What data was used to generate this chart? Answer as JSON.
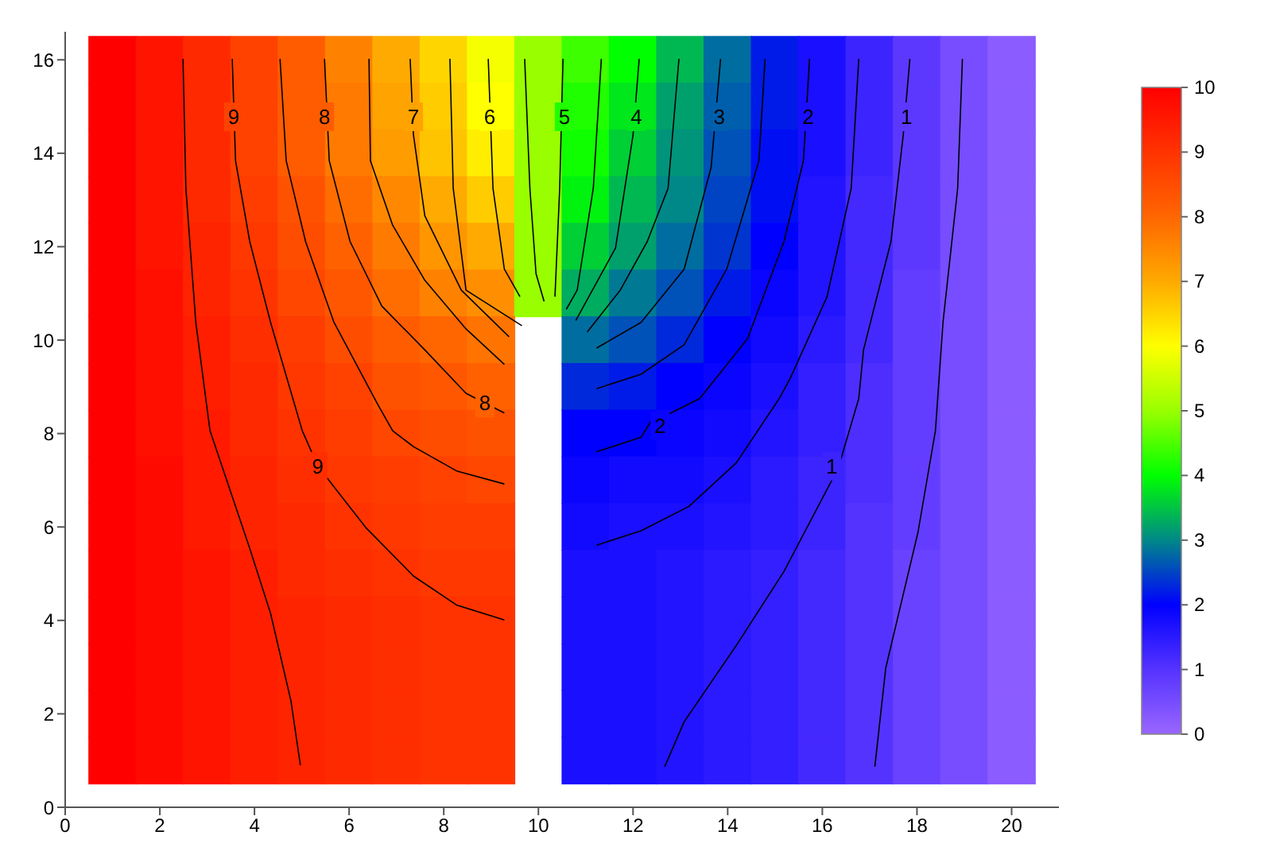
{
  "chart_data": {
    "type": "heatmap",
    "x": [
      1,
      2,
      3,
      4,
      5,
      6,
      7,
      8,
      9,
      10,
      11,
      12,
      13,
      14,
      15,
      16,
      17,
      18,
      19,
      20
    ],
    "y": [
      16,
      15,
      14,
      13,
      12,
      11,
      10,
      9,
      8,
      7,
      6,
      5,
      4,
      3,
      2,
      1
    ],
    "cells": [
      [
        10,
        9.6,
        9.2,
        8.7,
        8.2,
        7.6,
        7.0,
        6.5,
        5.9,
        5.0,
        4.4,
        4.0,
        3.4,
        2.8,
        2.2,
        1.7,
        1.3,
        0.9,
        0.5,
        0.2
      ],
      [
        10,
        9.6,
        9.2,
        8.7,
        8.2,
        7.7,
        7.1,
        6.6,
        6.0,
        5.0,
        4.2,
        3.8,
        3.2,
        2.7,
        2.2,
        1.7,
        1.3,
        0.9,
        0.5,
        0.2
      ],
      [
        10,
        9.6,
        9.2,
        8.7,
        8.2,
        7.7,
        7.2,
        6.7,
        6.2,
        5.0,
        4.1,
        3.6,
        3.1,
        2.6,
        2.1,
        1.7,
        1.3,
        0.9,
        0.5,
        0.2
      ],
      [
        10,
        9.6,
        9.2,
        8.8,
        8.4,
        7.9,
        7.5,
        7.0,
        6.6,
        5.0,
        3.9,
        3.4,
        3.0,
        2.5,
        2.1,
        1.6,
        1.2,
        0.9,
        0.5,
        0.2
      ],
      [
        10,
        9.6,
        9.3,
        8.9,
        8.5,
        8.1,
        7.7,
        7.3,
        7.0,
        5.0,
        3.6,
        3.2,
        2.8,
        2.4,
        2.0,
        1.6,
        1.2,
        0.9,
        0.5,
        0.2
      ],
      [
        10,
        9.7,
        9.3,
        9.0,
        8.6,
        8.3,
        7.9,
        7.6,
        7.4,
        5.0,
        3.3,
        2.9,
        2.6,
        2.2,
        1.9,
        1.6,
        1.2,
        0.8,
        0.5,
        0.2
      ],
      [
        10,
        9.7,
        9.4,
        9.1,
        8.8,
        8.5,
        8.2,
        8.0,
        7.8,
        null,
        2.8,
        2.6,
        2.3,
        2.0,
        1.8,
        1.5,
        1.2,
        0.8,
        0.5,
        0.2
      ],
      [
        10,
        9.7,
        9.4,
        9.2,
        8.9,
        8.7,
        8.4,
        8.3,
        8.1,
        null,
        2.3,
        2.2,
        2.0,
        1.9,
        1.7,
        1.4,
        1.1,
        0.8,
        0.5,
        0.2
      ],
      [
        10,
        9.7,
        9.5,
        9.2,
        9.0,
        8.8,
        8.6,
        8.5,
        8.4,
        null,
        2.0,
        2.0,
        1.9,
        1.8,
        1.6,
        1.4,
        1.1,
        0.8,
        0.5,
        0.2
      ],
      [
        10,
        9.8,
        9.5,
        9.3,
        9.1,
        8.9,
        8.8,
        8.7,
        8.6,
        null,
        1.9,
        1.8,
        1.8,
        1.7,
        1.5,
        1.3,
        1.1,
        0.8,
        0.5,
        0.2
      ],
      [
        10,
        9.8,
        9.5,
        9.3,
        9.2,
        9.0,
        8.9,
        8.8,
        8.8,
        null,
        1.8,
        1.7,
        1.7,
        1.6,
        1.5,
        1.3,
        1.0,
        0.8,
        0.5,
        0.2
      ],
      [
        10,
        9.8,
        9.6,
        9.4,
        9.2,
        9.1,
        9.0,
        8.9,
        8.9,
        null,
        1.7,
        1.7,
        1.6,
        1.5,
        1.4,
        1.2,
        1.0,
        0.7,
        0.5,
        0.2
      ],
      [
        10,
        9.8,
        9.6,
        9.4,
        9.3,
        9.2,
        9.1,
        9.0,
        9.0,
        null,
        1.7,
        1.7,
        1.6,
        1.5,
        1.4,
        1.2,
        1.0,
        0.7,
        0.5,
        0.2
      ],
      [
        10,
        9.8,
        9.6,
        9.4,
        9.3,
        9.2,
        9.1,
        9.0,
        9.0,
        null,
        1.7,
        1.7,
        1.6,
        1.5,
        1.4,
        1.2,
        1.0,
        0.7,
        0.5,
        0.2
      ],
      [
        10,
        9.8,
        9.6,
        9.4,
        9.3,
        9.2,
        9.1,
        9.0,
        9.0,
        null,
        1.7,
        1.7,
        1.6,
        1.5,
        1.4,
        1.2,
        1.0,
        0.7,
        0.5,
        0.2
      ],
      [
        10,
        9.8,
        9.6,
        9.4,
        9.3,
        9.2,
        9.1,
        9.0,
        9.0,
        null,
        1.7,
        1.7,
        1.6,
        1.5,
        1.4,
        1.2,
        1.0,
        0.7,
        0.5,
        0.2
      ]
    ],
    "colors": [
      "#9966ff",
      "#5533ff",
      "#0000ff",
      "#008888",
      "#00ff00",
      "#99ff00",
      "#ffff00",
      "#ffaa00",
      "#ff6600",
      "#ff3300",
      "#ff0000"
    ],
    "clim": [
      0,
      10
    ],
    "cticks": [
      0,
      1,
      2,
      3,
      4,
      5,
      6,
      7,
      8,
      9,
      10
    ],
    "xlim": [
      0,
      21
    ],
    "xticks": [
      0,
      2,
      4,
      6,
      8,
      10,
      12,
      14,
      16,
      18,
      20
    ],
    "ylim": [
      0,
      16.6
    ],
    "yticks": [
      0,
      2,
      4,
      6,
      8,
      10,
      12,
      14,
      16
    ],
    "series": [
      {
        "type": "line",
        "color": "#000000",
        "x": [
          2.49,
          2.55,
          2.76,
          3.06,
          3.9,
          4.34,
          4.77,
          4.97
        ],
        "values": [
          16.02,
          13.25,
          10.38,
          8.06,
          5.54,
          4.15,
          2.28,
          0.9
        ]
      },
      {
        "type": "line",
        "color": "#000000",
        "x": [
          3.53,
          3.6,
          3.9,
          4.34,
          5.01,
          5.34,
          6.35,
          7.36,
          8.27,
          9.28
        ],
        "values": [
          16.02,
          13.84,
          12.11,
          10.38,
          8.06,
          7.3,
          5.99,
          4.95,
          4.33,
          4.01
        ]
      },
      {
        "type": "line",
        "color": "#000000",
        "x": [
          4.54,
          4.67,
          5.08,
          5.68,
          6.59,
          6.92,
          7.36,
          8.27,
          9.28
        ],
        "values": [
          16.02,
          13.84,
          12.11,
          10.38,
          8.65,
          8.06,
          7.72,
          7.2,
          6.92
        ]
      },
      {
        "type": "line",
        "color": "#000000",
        "x": [
          5.48,
          5.58,
          6.02,
          6.69,
          7.6,
          8.47,
          9.28
        ],
        "values": [
          16.02,
          13.84,
          12.11,
          10.73,
          9.79,
          8.86,
          8.44
        ]
      },
      {
        "type": "line",
        "color": "#000000",
        "x": [
          6.42,
          6.45,
          6.92,
          7.6,
          8.47,
          9.28
        ],
        "values": [
          16.02,
          13.84,
          12.46,
          11.28,
          10.24,
          9.48
        ]
      },
      {
        "type": "line",
        "color": "#000000",
        "x": [
          7.29,
          7.36,
          7.6,
          8.37,
          9.38
        ],
        "values": [
          16.02,
          14.39,
          12.66,
          11.07,
          10.07
        ]
      },
      {
        "type": "line",
        "color": "#000000",
        "x": [
          8.13,
          8.2,
          8.47,
          9.65
        ],
        "values": [
          16.02,
          13.25,
          11.07,
          10.31
        ]
      },
      {
        "type": "line",
        "color": "#000000",
        "x": [
          8.94,
          9.04,
          9.28,
          9.61
        ],
        "values": [
          16.02,
          13.25,
          11.52,
          10.93
        ]
      },
      {
        "type": "line",
        "color": "#000000",
        "x": [
          9.71,
          9.82,
          9.95,
          10.12
        ],
        "values": [
          16.02,
          13.25,
          11.42,
          10.83
        ]
      },
      {
        "type": "line",
        "color": "#000000",
        "x": [
          10.52,
          10.45,
          10.35
        ],
        "values": [
          16.02,
          13.25,
          10.93
        ]
      },
      {
        "type": "line",
        "color": "#000000",
        "x": [
          11.33,
          11.16,
          10.82,
          10.59
        ],
        "values": [
          16.02,
          13.25,
          11.07,
          10.66
        ]
      },
      {
        "type": "line",
        "color": "#000000",
        "x": [
          12.13,
          12.0,
          11.63,
          10.79
        ],
        "values": [
          16.02,
          14.39,
          11.97,
          10.42
        ]
      },
      {
        "type": "line",
        "color": "#000000",
        "x": [
          12.97,
          12.74,
          12.3,
          11.73,
          11.03
        ],
        "values": [
          16.02,
          13.25,
          12.11,
          11.07,
          10.17
        ]
      },
      {
        "type": "line",
        "color": "#000000",
        "x": [
          13.85,
          13.65,
          13.08,
          12.17,
          11.23
        ],
        "values": [
          16.02,
          13.7,
          11.52,
          10.38,
          9.83
        ]
      },
      {
        "type": "line",
        "color": "#000000",
        "x": [
          14.79,
          14.66,
          13.98,
          13.08,
          12.17,
          11.23
        ],
        "values": [
          16.02,
          13.84,
          11.52,
          9.9,
          9.27,
          8.96
        ]
      },
      {
        "type": "line",
        "color": "#000000",
        "x": [
          15.73,
          15.6,
          15.19,
          14.42,
          13.41,
          12.74,
          12.4,
          12.17,
          11.23
        ],
        "values": [
          16.02,
          13.84,
          12.11,
          10.03,
          8.75,
          8.41,
          8.3,
          7.92,
          7.61
        ]
      },
      {
        "type": "line",
        "color": "#000000",
        "x": [
          16.77,
          16.61,
          16.1,
          15.33,
          15.09,
          14.18,
          13.18,
          12.17,
          11.23
        ],
        "values": [
          16.02,
          13.25,
          10.93,
          9.2,
          8.75,
          7.37,
          6.44,
          5.92,
          5.61
        ]
      },
      {
        "type": "line",
        "color": "#000000",
        "x": [
          17.85,
          17.71,
          17.45,
          16.87,
          16.77,
          16.34,
          15.19,
          14.18,
          13.08,
          12.67
        ],
        "values": [
          16.02,
          14.39,
          12.11,
          9.79,
          8.75,
          7.27,
          5.05,
          3.46,
          1.83,
          0.87
        ]
      },
      {
        "type": "line",
        "color": "#000000",
        "x": [
          18.96,
          18.86,
          18.55,
          18.39,
          18.02,
          17.34,
          17.11
        ],
        "values": [
          16.02,
          13.25,
          10.38,
          8.06,
          5.88,
          2.98,
          0.87
        ]
      }
    ],
    "annotations": [
      {
        "text": "9",
        "x": 3.56,
        "y": 14.78
      },
      {
        "text": "8",
        "x": 5.48,
        "y": 14.78
      },
      {
        "text": "7",
        "x": 7.36,
        "y": 14.78
      },
      {
        "text": "6",
        "x": 8.97,
        "y": 14.78
      },
      {
        "text": "5",
        "x": 10.55,
        "y": 14.78
      },
      {
        "text": "4",
        "x": 12.07,
        "y": 14.78
      },
      {
        "text": "3",
        "x": 13.82,
        "y": 14.78
      },
      {
        "text": "2",
        "x": 15.7,
        "y": 14.78
      },
      {
        "text": "1",
        "x": 17.78,
        "y": 14.78
      },
      {
        "text": "9",
        "x": 5.34,
        "y": 7.3
      },
      {
        "text": "8",
        "x": 8.87,
        "y": 8.65
      },
      {
        "text": "2",
        "x": 12.57,
        "y": 8.17
      },
      {
        "text": "1",
        "x": 16.2,
        "y": 7.3
      }
    ]
  }
}
